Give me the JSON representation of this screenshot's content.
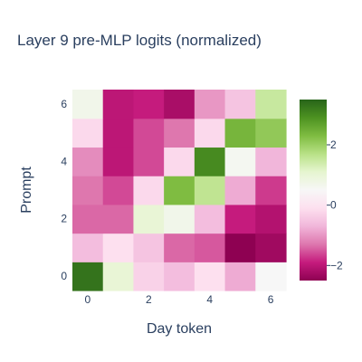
{
  "chart_data": {
    "type": "heatmap",
    "title": "Layer 9 pre-MLP logits (normalized)",
    "xlabel": "Day token",
    "ylabel": "Prompt",
    "x_ticks": [
      0,
      2,
      4,
      6
    ],
    "y_ticks": [
      0,
      2,
      4,
      6
    ],
    "colorbar_ticks": [
      2,
      0,
      -2
    ],
    "colorbar_tick_labels": [
      "2",
      "0",
      "−2"
    ],
    "zmin": -2.5,
    "zmax": 3.5,
    "colorscale": [
      "#8e0152",
      "#c51b7d",
      "#de77ae",
      "#f1b6da",
      "#fde0ef",
      "#f7f7f7",
      "#e6f5d0",
      "#b8e186",
      "#7fbc41",
      "#4d9221",
      "#276419"
    ],
    "z": [
      [
        3.3,
        1.0,
        -0.3,
        -0.6,
        -0.1,
        -0.8,
        0.5
      ],
      [
        -0.6,
        -0.1,
        -0.5,
        -1.4,
        -1.5,
        -2.5,
        -2.3
      ],
      [
        -1.4,
        -1.4,
        1.0,
        0.7,
        -0.6,
        -1.9,
        -2.1
      ],
      [
        -1.3,
        -1.6,
        -0.2,
        2.3,
        1.6,
        -0.8,
        -1.7
      ],
      [
        -1.1,
        -2.0,
        -1.6,
        -0.2,
        3.0,
        0.6,
        -0.7
      ],
      [
        -0.2,
        -2.0,
        -1.6,
        -1.3,
        -0.2,
        2.4,
        2.1
      ],
      [
        0.7,
        -2.0,
        -1.9,
        -2.2,
        -1.0,
        -0.5,
        1.5
      ]
    ]
  }
}
